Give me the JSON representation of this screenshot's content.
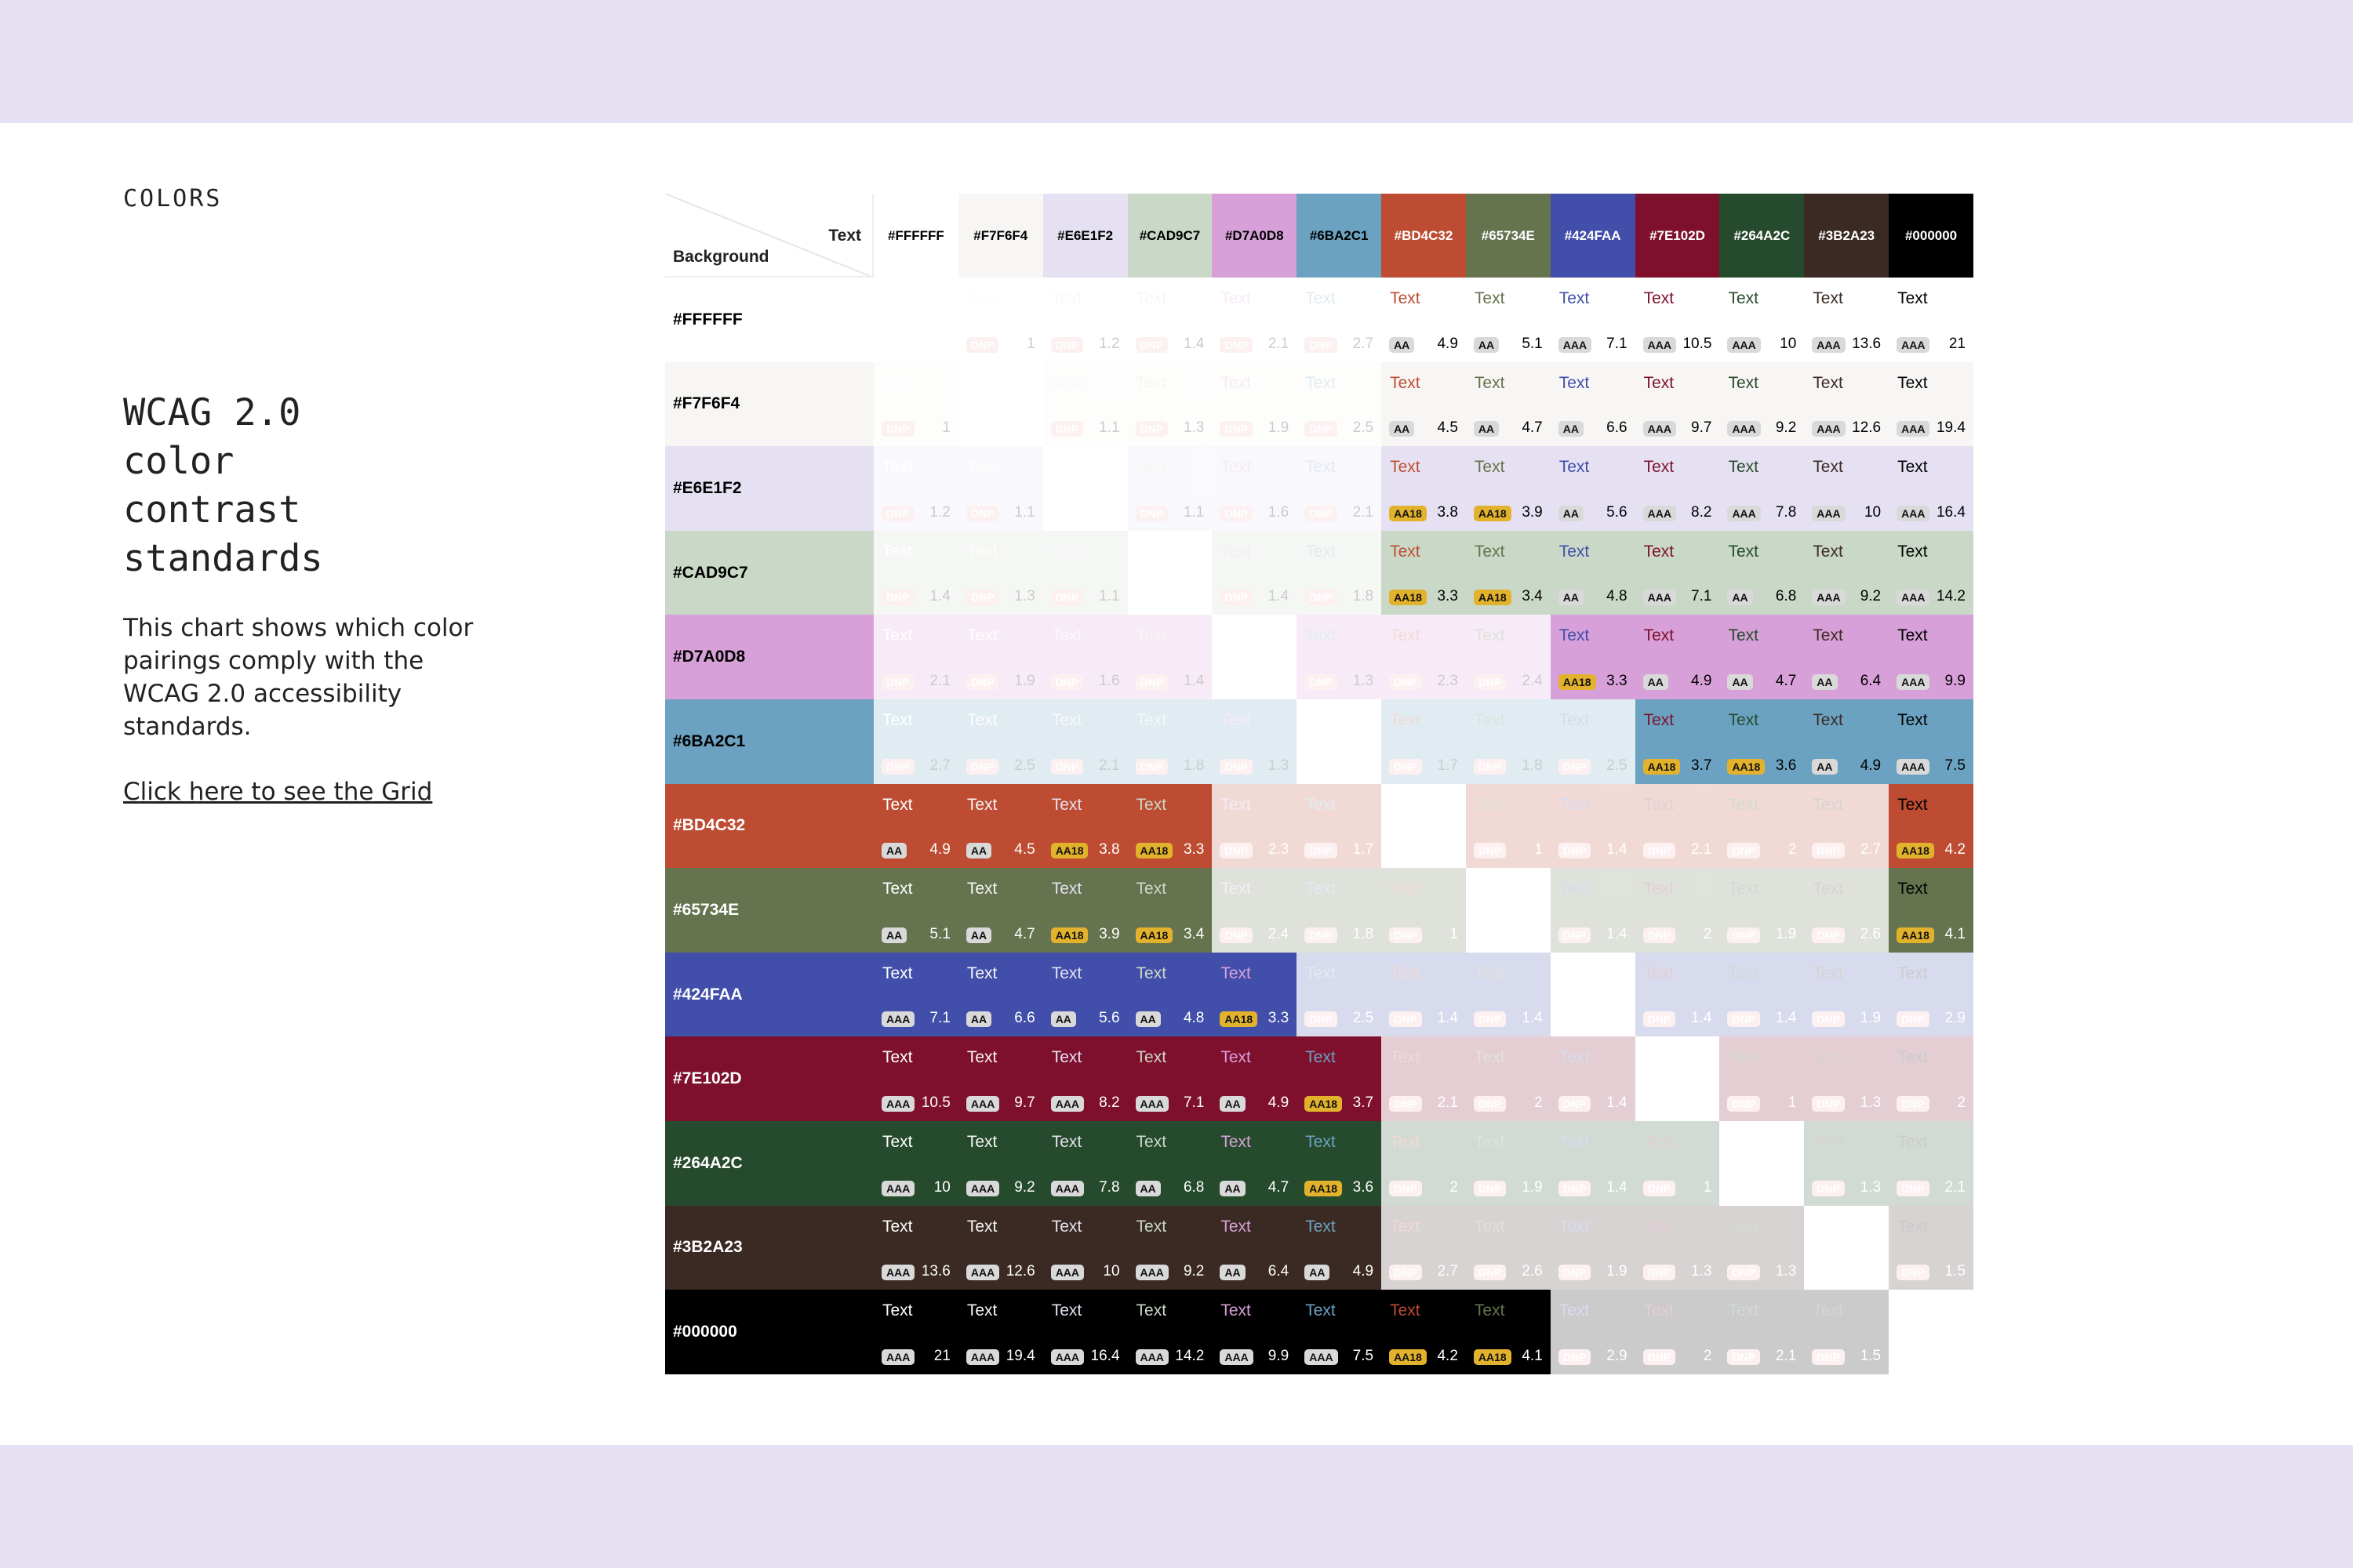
{
  "page": {
    "section_label": "COLORS",
    "title_lines": [
      "WCAG 2.0",
      "color",
      "contrast",
      "standards"
    ],
    "description": "This chart shows which color pairings comply with the WCAG 2.0 accessibility standards.",
    "grid_link": "Click here to see the Grid"
  },
  "matrix": {
    "axis_text_label": "Text",
    "axis_background_label": "Background",
    "cell_text": "Text",
    "colors": [
      "#FFFFFF",
      "#F7F6F4",
      "#E6E1F2",
      "#CAD9C7",
      "#D7A0D8",
      "#6BA2C1",
      "#BD4C32",
      "#65734E",
      "#424FAA",
      "#7E102D",
      "#264A2C",
      "#3B2A23",
      "#000000"
    ],
    "header_label_colors": [
      "#000000",
      "#000000",
      "#000000",
      "#000000",
      "#000000",
      "#000000",
      "#FFFFFF",
      "#FFFFFF",
      "#FFFFFF",
      "#FFFFFF",
      "#FFFFFF",
      "#FFFFFF",
      "#FFFFFF"
    ],
    "badge_colors": {
      "AAA": "#D9D9D9",
      "AA": "#D9D9D9",
      "AA18": "#E3B22C",
      "DNP": "#F4B6BD"
    },
    "rows": [
      {
        "ratios": [
          null,
          "1",
          "1.2",
          "1.4",
          "2.1",
          "2.7",
          "4.9",
          "5.1",
          "7.1",
          "10.5",
          "10",
          "13.6",
          "21"
        ],
        "ratings": [
          null,
          "DNP",
          "DNP",
          "DNP",
          "DNP",
          "DNP",
          "AA",
          "AA",
          "AAA",
          "AAA",
          "AAA",
          "AAA",
          "AAA"
        ]
      },
      {
        "ratios": [
          "1",
          null,
          "1.1",
          "1.3",
          "1.9",
          "2.5",
          "4.5",
          "4.7",
          "6.6",
          "9.7",
          "9.2",
          "12.6",
          "19.4"
        ],
        "ratings": [
          "DNP",
          null,
          "DNP",
          "DNP",
          "DNP",
          "DNP",
          "AA",
          "AA",
          "AA",
          "AAA",
          "AAA",
          "AAA",
          "AAA"
        ]
      },
      {
        "ratios": [
          "1.2",
          "1.1",
          null,
          "1.1",
          "1.6",
          "2.1",
          "3.8",
          "3.9",
          "5.6",
          "8.2",
          "7.8",
          "10",
          "16.4"
        ],
        "ratings": [
          "DNP",
          "DNP",
          null,
          "DNP",
          "DNP",
          "DNP",
          "AA18",
          "AA18",
          "AA",
          "AAA",
          "AAA",
          "AAA",
          "AAA"
        ]
      },
      {
        "ratios": [
          "1.4",
          "1.3",
          "1.1",
          null,
          "1.4",
          "1.8",
          "3.3",
          "3.4",
          "4.8",
          "7.1",
          "6.8",
          "9.2",
          "14.2"
        ],
        "ratings": [
          "DNP",
          "DNP",
          "DNP",
          null,
          "DNP",
          "DNP",
          "AA18",
          "AA18",
          "AA",
          "AAA",
          "AA",
          "AAA",
          "AAA"
        ]
      },
      {
        "ratios": [
          "2.1",
          "1.9",
          "1.6",
          "1.4",
          null,
          "1.3",
          "2.3",
          "2.4",
          "3.3",
          "4.9",
          "4.7",
          "6.4",
          "9.9"
        ],
        "ratings": [
          "DNP",
          "DNP",
          "DNP",
          "DNP",
          null,
          "DNP",
          "DNP",
          "DNP",
          "AA18",
          "AA",
          "AA",
          "AA",
          "AAA"
        ]
      },
      {
        "ratios": [
          "2.7",
          "2.5",
          "2.1",
          "1.8",
          "1.3",
          null,
          "1.7",
          "1.8",
          "2.5",
          "3.7",
          "3.6",
          "4.9",
          "7.5"
        ],
        "ratings": [
          "DNP",
          "DNP",
          "DNP",
          "DNP",
          "DNP",
          null,
          "DNP",
          "DNP",
          "DNP",
          "AA18",
          "AA18",
          "AA",
          "AAA"
        ]
      },
      {
        "ratios": [
          "4.9",
          "4.5",
          "3.8",
          "3.3",
          "2.3",
          "1.7",
          null,
          "1",
          "1.4",
          "2.1",
          "2",
          "2.7",
          "4.2"
        ],
        "ratings": [
          "AA",
          "AA",
          "AA18",
          "AA18",
          "DNP",
          "DNP",
          null,
          "DNP",
          "DNP",
          "DNP",
          "DNP",
          "DNP",
          "AA18"
        ]
      },
      {
        "ratios": [
          "5.1",
          "4.7",
          "3.9",
          "3.4",
          "2.4",
          "1.8",
          "1",
          null,
          "1.4",
          "2",
          "1.9",
          "2.6",
          "4.1"
        ],
        "ratings": [
          "AA",
          "AA",
          "AA18",
          "AA18",
          "DNP",
          "DNP",
          "DNP",
          null,
          "DNP",
          "DNP",
          "DNP",
          "DNP",
          "AA18"
        ]
      },
      {
        "ratios": [
          "7.1",
          "6.6",
          "5.6",
          "4.8",
          "3.3",
          "2.5",
          "1.4",
          "1.4",
          null,
          "1.4",
          "1.4",
          "1.9",
          "2.9"
        ],
        "ratings": [
          "AAA",
          "AA",
          "AA",
          "AA",
          "AA18",
          "DNP",
          "DNP",
          "DNP",
          null,
          "DNP",
          "DNP",
          "DNP",
          "DNP"
        ]
      },
      {
        "ratios": [
          "10.5",
          "9.7",
          "8.2",
          "7.1",
          "4.9",
          "3.7",
          "2.1",
          "2",
          "1.4",
          null,
          "1",
          "1.3",
          "2"
        ],
        "ratings": [
          "AAA",
          "AAA",
          "AAA",
          "AAA",
          "AA",
          "AA18",
          "DNP",
          "DNP",
          "DNP",
          null,
          "DNP",
          "DNP",
          "DNP"
        ]
      },
      {
        "ratios": [
          "10",
          "9.2",
          "7.8",
          "6.8",
          "4.7",
          "3.6",
          "2",
          "1.9",
          "1.4",
          "1",
          null,
          "1.3",
          "2.1"
        ],
        "ratings": [
          "AAA",
          "AAA",
          "AAA",
          "AA",
          "AA",
          "AA18",
          "DNP",
          "DNP",
          "DNP",
          "DNP",
          null,
          "DNP",
          "DNP"
        ]
      },
      {
        "ratios": [
          "13.6",
          "12.6",
          "10",
          "9.2",
          "6.4",
          "4.9",
          "2.7",
          "2.6",
          "1.9",
          "1.3",
          "1.3",
          null,
          "1.5"
        ],
        "ratings": [
          "AAA",
          "AAA",
          "AAA",
          "AAA",
          "AA",
          "AA",
          "DNP",
          "DNP",
          "DNP",
          "DNP",
          "DNP",
          null,
          "DNP"
        ]
      },
      {
        "ratios": [
          "21",
          "19.4",
          "16.4",
          "14.2",
          "9.9",
          "7.5",
          "4.2",
          "4.1",
          "2.9",
          "2",
          "2.1",
          "1.5",
          null
        ],
        "ratings": [
          "AAA",
          "AAA",
          "AAA",
          "AAA",
          "AAA",
          "AAA",
          "AA18",
          "AA18",
          "DNP",
          "DNP",
          "DNP",
          "DNP",
          null
        ]
      }
    ]
  }
}
